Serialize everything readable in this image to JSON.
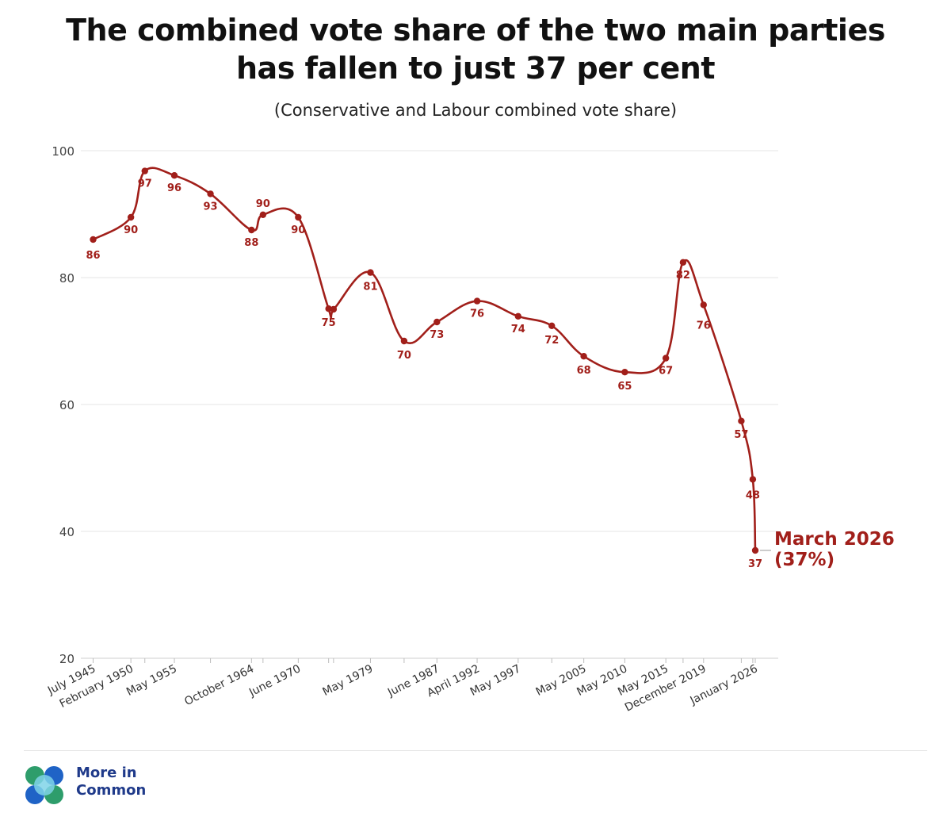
{
  "title_lines": [
    "The combined vote share of the two main parties",
    "has fallen to just 37 per cent"
  ],
  "subtitle": "(Conservative and Labour combined vote share)",
  "colors": {
    "line": "#a11f1a",
    "grid": "#e6e6e6",
    "axis_text": "#444444",
    "brand": "#1f3a8a"
  },
  "chart_data": {
    "type": "line",
    "title": "The combined vote share of the two main parties has fallen to just 37 per cent",
    "subtitle": "(Conservative and Labour combined vote share)",
    "xlabel": "",
    "ylabel": "",
    "ylim": [
      20,
      100
    ],
    "yticks": [
      20,
      40,
      60,
      80,
      100
    ],
    "grid": true,
    "x_ticks": [
      "July 1945",
      "February 1950",
      "May 1955",
      "October 1964",
      "June 1970",
      "May 1979",
      "June 1987",
      "April 1992",
      "May 1997",
      "May 2005",
      "May 2010",
      "May 2015",
      "December 2019",
      "January 2026"
    ],
    "series": [
      {
        "name": "Conservative and Labour combined vote share",
        "points": [
          {
            "x": 1945.5,
            "y": 86,
            "label": "86"
          },
          {
            "x": 1950.1,
            "y": 89.5,
            "label": "90"
          },
          {
            "x": 1951.8,
            "y": 96.8,
            "label": "97"
          },
          {
            "x": 1955.4,
            "y": 96.1,
            "label": "96"
          },
          {
            "x": 1959.8,
            "y": 93.2,
            "label": "93"
          },
          {
            "x": 1964.8,
            "y": 87.5,
            "label": "88"
          },
          {
            "x": 1966.2,
            "y": 89.9,
            "label": "90"
          },
          {
            "x": 1970.5,
            "y": 89.5,
            "label": "90"
          },
          {
            "x": 1974.2,
            "y": 75.1,
            "label": "75"
          },
          {
            "x": 1974.8,
            "y": 75.0,
            "label": ""
          },
          {
            "x": 1979.3,
            "y": 80.8,
            "label": "81"
          },
          {
            "x": 1983.4,
            "y": 70.0,
            "label": "70"
          },
          {
            "x": 1987.4,
            "y": 73.0,
            "label": "73"
          },
          {
            "x": 1992.3,
            "y": 76.3,
            "label": "76"
          },
          {
            "x": 1997.3,
            "y": 73.9,
            "label": "74"
          },
          {
            "x": 2001.4,
            "y": 72.4,
            "label": "72"
          },
          {
            "x": 2005.3,
            "y": 67.6,
            "label": "68"
          },
          {
            "x": 2010.3,
            "y": 65.1,
            "label": "65"
          },
          {
            "x": 2015.3,
            "y": 67.3,
            "label": "67"
          },
          {
            "x": 2017.4,
            "y": 82.4,
            "label": "82"
          },
          {
            "x": 2019.9,
            "y": 75.7,
            "label": "76"
          },
          {
            "x": 2024.5,
            "y": 57.4,
            "label": "57"
          },
          {
            "x": 2025.9,
            "y": 48.2,
            "label": "48"
          },
          {
            "x": 2026.2,
            "y": 37.0,
            "label": "37"
          }
        ]
      }
    ],
    "annotation": {
      "lines": [
        "March 2026",
        "(37%)"
      ]
    }
  },
  "logo": {
    "name_lines": [
      "More in",
      "Common"
    ]
  }
}
